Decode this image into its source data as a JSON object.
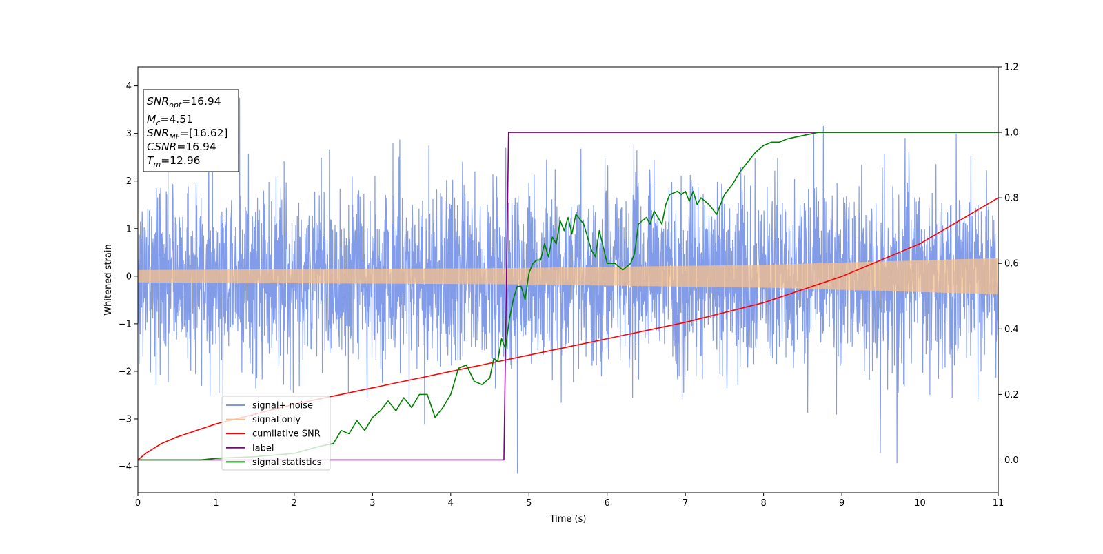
{
  "chart_data": {
    "type": "line",
    "xlabel": "Time (s)",
    "ylabel": "Whitened strain",
    "xlim": [
      0,
      11
    ],
    "ylim": [
      -4.55,
      4.4
    ],
    "y2lim": [
      -0.1,
      1.2
    ],
    "grid": false,
    "legend_position": "lower-left",
    "x_ticks": [
      "0",
      "1",
      "2",
      "3",
      "4",
      "5",
      "6",
      "7",
      "8",
      "9",
      "10",
      "11"
    ],
    "y_ticks": [
      "−4",
      "−3",
      "−2",
      "−1",
      "0",
      "1",
      "2",
      "3",
      "4"
    ],
    "y2_ticks": [
      "0.0",
      "0.2",
      "0.4",
      "0.6",
      "0.8",
      "1.0",
      "1.2"
    ],
    "stats_box": {
      "snr_opt": {
        "base": "SNR",
        "sub": "opt",
        "value": "=16.94"
      },
      "mc": {
        "base": "M",
        "sub": "c",
        "value": "=4.51"
      },
      "snr_mf": {
        "base": "SNR",
        "sub": "MF",
        "value": "=[16.62]"
      },
      "csnr": {
        "base": "CSNR",
        "value": "=16.94"
      },
      "tm": {
        "base": "T",
        "sub": "m",
        "value": "=12.96"
      }
    },
    "series": [
      {
        "name": "signal+ noise",
        "color": "#7b97e8",
        "axis": "left",
        "description_type": "noise",
        "sigma": 0.95,
        "extreme_min": -4.15,
        "extreme_max": 3.75
      },
      {
        "name": "signal only",
        "color": "#f5c08a",
        "axis": "left",
        "envelope_x": [
          0,
          4.7,
          8,
          11
        ],
        "envelope_y": [
          0.13,
          0.17,
          0.24,
          0.38
        ]
      },
      {
        "name": "cumilative SNR",
        "color": "#ff0000",
        "axis": "right",
        "x": [
          0,
          0.1,
          0.3,
          0.5,
          1,
          2,
          3,
          4,
          5,
          6,
          7,
          8,
          9,
          10,
          11
        ],
        "y": [
          0.0,
          0.02,
          0.05,
          0.07,
          0.11,
          0.17,
          0.22,
          0.27,
          0.32,
          0.37,
          0.42,
          0.48,
          0.56,
          0.66,
          0.8
        ]
      },
      {
        "name": "label",
        "color": "#800080",
        "axis": "right",
        "x": [
          0,
          4.68,
          4.74,
          11
        ],
        "y": [
          0.0,
          0.0,
          1.0,
          1.0
        ]
      },
      {
        "name": "signal statistics",
        "color": "#008000",
        "axis": "right",
        "x": [
          0,
          0.8,
          1.0,
          1.5,
          2.0,
          2.3,
          2.5,
          2.6,
          2.7,
          2.8,
          2.9,
          3.0,
          3.1,
          3.2,
          3.3,
          3.4,
          3.5,
          3.6,
          3.7,
          3.8,
          3.9,
          4.0,
          4.05,
          4.1,
          4.2,
          4.3,
          4.4,
          4.5,
          4.55,
          4.6,
          4.65,
          4.7,
          4.75,
          4.8,
          4.85,
          4.9,
          4.95,
          5.0,
          5.05,
          5.1,
          5.15,
          5.2,
          5.25,
          5.3,
          5.35,
          5.4,
          5.45,
          5.5,
          5.55,
          5.6,
          5.7,
          5.8,
          5.85,
          5.9,
          6.0,
          6.1,
          6.2,
          6.3,
          6.35,
          6.4,
          6.5,
          6.55,
          6.6,
          6.7,
          6.75,
          6.8,
          6.9,
          6.95,
          7.0,
          7.05,
          7.1,
          7.15,
          7.2,
          7.3,
          7.4,
          7.5,
          7.6,
          7.7,
          7.8,
          7.9,
          8.0,
          8.1,
          8.2,
          8.3,
          8.4,
          8.5,
          8.6,
          8.7,
          8.8,
          9.0,
          9.2,
          9.5,
          10,
          11
        ],
        "y": [
          0.0,
          0.0,
          0.005,
          0.01,
          0.02,
          0.04,
          0.05,
          0.09,
          0.08,
          0.12,
          0.09,
          0.13,
          0.15,
          0.18,
          0.15,
          0.19,
          0.16,
          0.2,
          0.2,
          0.13,
          0.16,
          0.2,
          0.24,
          0.28,
          0.29,
          0.24,
          0.23,
          0.25,
          0.31,
          0.3,
          0.37,
          0.34,
          0.43,
          0.49,
          0.53,
          0.53,
          0.49,
          0.57,
          0.6,
          0.61,
          0.61,
          0.66,
          0.62,
          0.68,
          0.66,
          0.73,
          0.7,
          0.74,
          0.69,
          0.75,
          0.72,
          0.64,
          0.62,
          0.7,
          0.6,
          0.6,
          0.58,
          0.6,
          0.63,
          0.72,
          0.74,
          0.72,
          0.76,
          0.72,
          0.78,
          0.81,
          0.82,
          0.81,
          0.82,
          0.79,
          0.82,
          0.78,
          0.8,
          0.78,
          0.75,
          0.81,
          0.84,
          0.88,
          0.91,
          0.94,
          0.96,
          0.97,
          0.97,
          0.98,
          0.985,
          0.99,
          0.995,
          1.0,
          1.0,
          1.0,
          1.0,
          1.0,
          1.0,
          1.0
        ]
      }
    ]
  }
}
